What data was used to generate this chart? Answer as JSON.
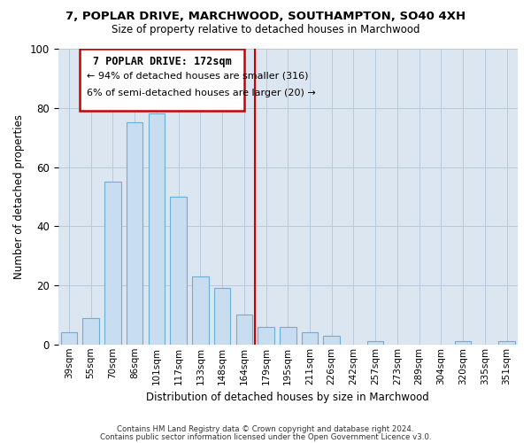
{
  "title1": "7, POPLAR DRIVE, MARCHWOOD, SOUTHAMPTON, SO40 4XH",
  "title2": "Size of property relative to detached houses in Marchwood",
  "xlabel": "Distribution of detached houses by size in Marchwood",
  "ylabel": "Number of detached properties",
  "bar_labels": [
    "39sqm",
    "55sqm",
    "70sqm",
    "86sqm",
    "101sqm",
    "117sqm",
    "133sqm",
    "148sqm",
    "164sqm",
    "179sqm",
    "195sqm",
    "211sqm",
    "226sqm",
    "242sqm",
    "257sqm",
    "273sqm",
    "289sqm",
    "304sqm",
    "320sqm",
    "335sqm",
    "351sqm"
  ],
  "bar_values": [
    4,
    9,
    55,
    75,
    78,
    50,
    23,
    19,
    10,
    6,
    6,
    4,
    3,
    0,
    1,
    0,
    0,
    0,
    1,
    0,
    1
  ],
  "bar_color": "#c9ddf0",
  "bar_edge_color": "#6baed6",
  "vline_x": 8.5,
  "vline_color": "#cc0000",
  "annotation_title": "7 POPLAR DRIVE: 172sqm",
  "annotation_line1": "← 94% of detached houses are smaller (316)",
  "annotation_line2": "6% of semi-detached houses are larger (20) →",
  "annotation_box_edgecolor": "#cc0000",
  "annotation_box_facecolor": "#ffffff",
  "ylim": [
    0,
    100
  ],
  "bg_color": "#dce6f1",
  "footer1": "Contains HM Land Registry data © Crown copyright and database right 2024.",
  "footer2": "Contains public sector information licensed under the Open Government Licence v3.0."
}
